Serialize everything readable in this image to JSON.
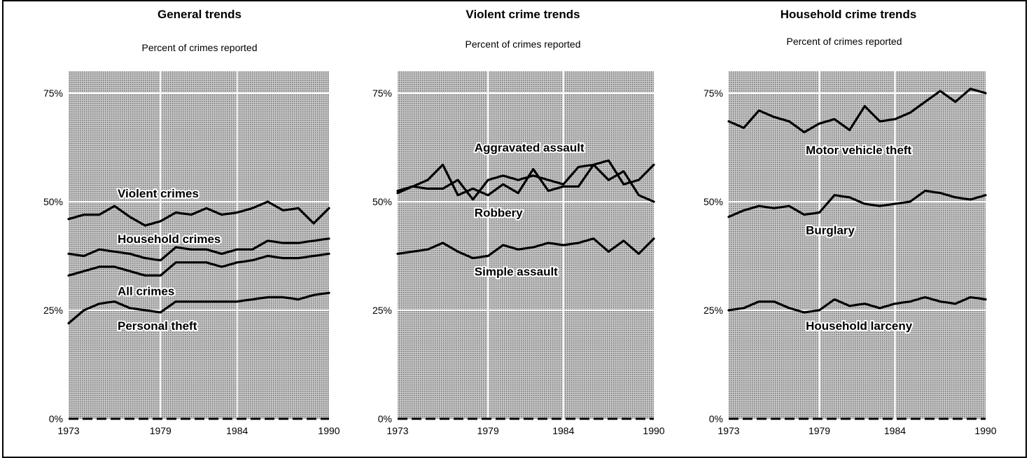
{
  "chart_data": [
    {
      "type": "line",
      "title": "General trends",
      "subtitle": "Percent of crimes reported",
      "xlim": [
        1973,
        1990
      ],
      "ylim": [
        0,
        80
      ],
      "x_ticks": [
        1973,
        1979,
        1984,
        1990
      ],
      "x_tick_labels": [
        "1973",
        "1979",
        "1984",
        "1990"
      ],
      "y_ticks": [
        0,
        25,
        50,
        75
      ],
      "y_tick_labels": [
        "0%",
        "25%",
        "50%",
        "75%"
      ],
      "x": [
        1973,
        1974,
        1975,
        1976,
        1977,
        1978,
        1979,
        1980,
        1981,
        1982,
        1983,
        1984,
        1985,
        1986,
        1987,
        1988,
        1989,
        1990
      ],
      "series": [
        {
          "name": "Violent crimes",
          "label_x": 1976.2,
          "label_y": 51,
          "values": [
            46,
            47,
            47,
            49,
            46.5,
            44.5,
            45.5,
            47.5,
            47,
            48.5,
            47,
            47.5,
            48.5,
            50,
            48,
            48.5,
            45,
            48.5
          ]
        },
        {
          "name": "Household crimes",
          "label_x": 1976.2,
          "label_y": 40.5,
          "values": [
            38,
            37.5,
            39,
            38.5,
            38,
            37,
            36.5,
            39.5,
            39,
            39,
            38,
            39,
            39,
            41,
            40.5,
            40.5,
            41,
            41.5
          ]
        },
        {
          "name": "All crimes",
          "label_x": 1976.2,
          "label_y": 28.5,
          "values": [
            33,
            34,
            35,
            35,
            34,
            33,
            33,
            36,
            36,
            36,
            35,
            36,
            36.5,
            37.5,
            37,
            37,
            37.5,
            38
          ]
        },
        {
          "name": "Personal theft",
          "label_x": 1976.2,
          "label_y": 20.5,
          "values": [
            22,
            25,
            26.5,
            27,
            25.5,
            25,
            24.5,
            27,
            27,
            27,
            27,
            27,
            27.5,
            28,
            28,
            27.5,
            28.5,
            29
          ]
        }
      ]
    },
    {
      "type": "line",
      "title": "Violent crime trends",
      "subtitle": "Percent of crimes reported",
      "xlim": [
        1973,
        1990
      ],
      "ylim": [
        0,
        80
      ],
      "x_ticks": [
        1973,
        1979,
        1984,
        1990
      ],
      "x_tick_labels": [
        "1973",
        "1979",
        "1984",
        "1990"
      ],
      "y_ticks": [
        0,
        25,
        50,
        75
      ],
      "y_tick_labels": [
        "0%",
        "25%",
        "50%",
        "75%"
      ],
      "x": [
        1973,
        1974,
        1975,
        1976,
        1977,
        1978,
        1979,
        1980,
        1981,
        1982,
        1983,
        1984,
        1985,
        1986,
        1987,
        1988,
        1989,
        1990
      ],
      "series": [
        {
          "name": "Aggravated assault",
          "label_x": 1978.1,
          "label_y": 61.5,
          "values": [
            52.5,
            53.5,
            53,
            53,
            55,
            50.5,
            55,
            56,
            55,
            56,
            55,
            54,
            58,
            58.5,
            59.5,
            54,
            55,
            58.5
          ]
        },
        {
          "name": "Robbery",
          "label_x": 1978.1,
          "label_y": 46.5,
          "values": [
            52,
            53.5,
            55,
            58.5,
            51.5,
            53,
            51.5,
            54,
            52,
            57.5,
            52.5,
            53.5,
            53.5,
            58.5,
            55,
            57,
            51.5,
            50
          ]
        },
        {
          "name": "Simple assault",
          "label_x": 1978.1,
          "label_y": 33,
          "values": [
            38,
            38.5,
            39,
            40.5,
            38.5,
            37,
            37.5,
            40,
            39,
            39.5,
            40.5,
            40,
            40.5,
            41.5,
            38.5,
            41,
            38,
            41.5
          ]
        }
      ]
    },
    {
      "type": "line",
      "title": "Household crime trends",
      "subtitle": "Percent of crimes reported",
      "xlim": [
        1973,
        1990
      ],
      "ylim": [
        0,
        80
      ],
      "x_ticks": [
        1973,
        1979,
        1984,
        1990
      ],
      "x_tick_labels": [
        "1973",
        "1979",
        "1984",
        "1990"
      ],
      "y_ticks": [
        0,
        25,
        50,
        75
      ],
      "y_tick_labels": [
        "0%",
        "25%",
        "50%",
        "75%"
      ],
      "x": [
        1973,
        1974,
        1975,
        1976,
        1977,
        1978,
        1979,
        1980,
        1981,
        1982,
        1983,
        1984,
        1985,
        1986,
        1987,
        1988,
        1989,
        1990
      ],
      "series": [
        {
          "name": "Motor vehicle theft",
          "label_x": 1978.1,
          "label_y": 61,
          "values": [
            68.5,
            67,
            71,
            69.5,
            68.5,
            66,
            68,
            69,
            66.5,
            72,
            68.5,
            69,
            70.5,
            73,
            75.5,
            73,
            76,
            75
          ]
        },
        {
          "name": "Burglary",
          "label_x": 1978.1,
          "label_y": 42.5,
          "values": [
            46.5,
            48,
            49,
            48.5,
            49,
            47,
            47.5,
            51.5,
            51,
            49.5,
            49,
            49.5,
            50,
            52.5,
            52,
            51,
            50.5,
            51.5
          ]
        },
        {
          "name": "Household larceny",
          "label_x": 1978.1,
          "label_y": 20.5,
          "values": [
            25,
            25.5,
            27,
            27,
            25.5,
            24.5,
            25,
            27.5,
            26,
            26.5,
            25.5,
            26.5,
            27,
            28,
            27,
            26.5,
            28,
            27.5
          ]
        }
      ]
    }
  ]
}
